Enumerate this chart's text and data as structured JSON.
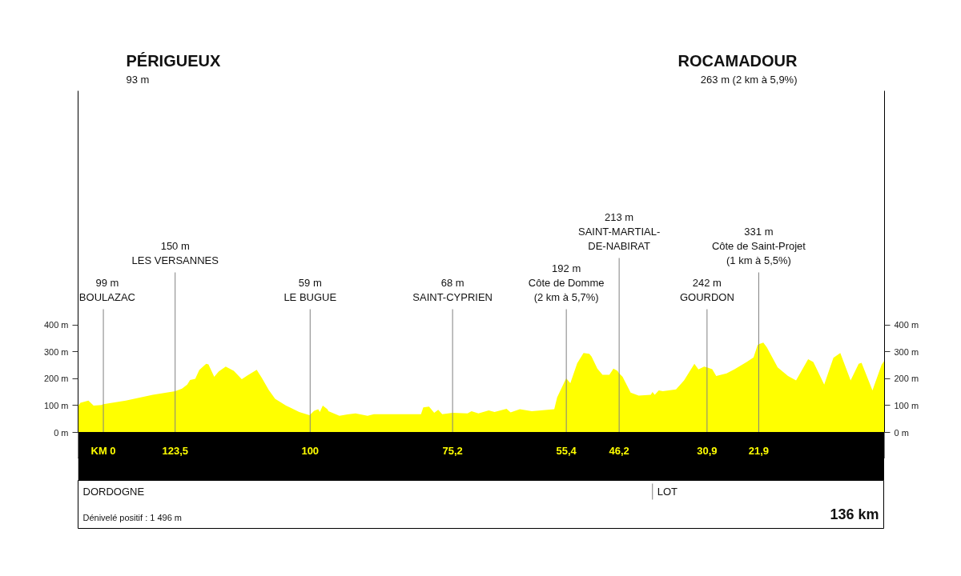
{
  "chart_data": {
    "type": "area",
    "color": "#ffff00",
    "grid": false,
    "annotations": [
      "PÉRIGUEUX\n93 m",
      "ROCAMADOUR\n263 m (2 km à 5,9%)",
      "DORDOGNE",
      "Dénivelé positif : 1 496 m",
      "136 km"
    ],
    "x": [
      140.4,
      140.0,
      138.6,
      138.2,
      137.7,
      136.3,
      136.0,
      132.1,
      127.4,
      123.5,
      122.3,
      121.4,
      120.9,
      120.0,
      119.3,
      118.1,
      117.7,
      116.7,
      115.9,
      114.7,
      113.3,
      111.9,
      110.9,
      109.3,
      108.4,
      107.2,
      106.1,
      104.2,
      101.9,
      100.1,
      99.3,
      98.6,
      98.3,
      97.8,
      97.0,
      96.8,
      94.9,
      93.5,
      92.1,
      90.0,
      88.9,
      84.2,
      80.7,
      80.3,
      79.3,
      78.4,
      77.7,
      77.0,
      75.2,
      72.6,
      71.9,
      70.7,
      68.9,
      67.9,
      65.8,
      65.1,
      63.5,
      61.4,
      57.5,
      57.0,
      55.6,
      55.4,
      54.7,
      53.5,
      52.4,
      51.4,
      51.0,
      50.0,
      49.1,
      47.9,
      47.2,
      46.5,
      46.2,
      45.6,
      44.2,
      42.8,
      40.7,
      40.4,
      40.0,
      39.3,
      38.6,
      36.3,
      34.9,
      33.1,
      32.4,
      31.4,
      30.9,
      30.0,
      29.3,
      27.5,
      26.1,
      24.0,
      22.8,
      22.1,
      21.9,
      21.1,
      20.5,
      18.6,
      16.8,
      15.4,
      13.3,
      12.4,
      10.5,
      8.9,
      7.7,
      5.9,
      4.5,
      4.0,
      2.1,
      0.5,
      0
    ],
    "values": [
      98,
      110,
      118,
      110,
      100,
      102,
      105,
      118,
      140,
      153,
      163,
      178,
      195,
      199,
      232,
      255,
      253,
      207,
      227,
      245,
      229,
      198,
      212,
      233,
      202,
      158,
      125,
      100,
      76,
      64,
      80,
      86,
      76,
      100,
      86,
      79,
      62,
      67,
      71,
      62,
      68,
      68,
      68,
      93,
      96,
      73,
      84,
      68,
      73,
      71,
      79,
      71,
      82,
      76,
      88,
      74,
      86,
      79,
      86,
      130,
      193,
      201,
      183,
      257,
      295,
      292,
      282,
      237,
      214,
      214,
      237,
      229,
      219,
      207,
      148,
      137,
      140,
      150,
      140,
      156,
      153,
      160,
      193,
      255,
      234,
      245,
      242,
      235,
      210,
      219,
      235,
      262,
      279,
      324,
      328,
      334,
      317,
      242,
      210,
      193,
      272,
      262,
      178,
      277,
      295,
      193,
      255,
      259,
      156,
      252,
      267
    ],
    "xlim": [
      140.4,
      0
    ],
    "xticks": [
      {
        "value": 136,
        "label": "KM 0"
      },
      {
        "value": 123.5,
        "label": "123,5"
      },
      100,
      {
        "value": 75.2,
        "label": "75,2"
      },
      {
        "value": 55.4,
        "label": "55,4"
      },
      {
        "value": 46.2,
        "label": "46,2"
      },
      {
        "value": 30.9,
        "label": "30,9"
      },
      {
        "value": 21.9,
        "label": "21,9"
      }
    ],
    "ylim": [
      0,
      1270
    ],
    "yticks": [
      {
        "value": 0,
        "label": "0 m"
      },
      {
        "value": 100,
        "label": "100 m"
      },
      {
        "value": 200,
        "label": "200 m"
      },
      {
        "value": 300,
        "label": "300 m"
      },
      {
        "value": 400,
        "label": "400 m"
      }
    ],
    "y2lim": [
      0,
      1270
    ],
    "y2ticks": [
      {
        "value": 0,
        "label": "0 m"
      },
      {
        "value": 100,
        "label": "100 m"
      },
      {
        "value": 200,
        "label": "200 m"
      },
      {
        "value": 300,
        "label": "300 m"
      },
      {
        "value": 400,
        "label": "400 m"
      }
    ],
    "ref_lines": [
      {
        "axis": "x",
        "value": 136,
        "label": "99 m\nBOULAZAC",
        "color": "#808080"
      },
      {
        "axis": "x",
        "value": 123.5,
        "label": "150 m\nLES VERSANNES",
        "color": "#808080"
      },
      {
        "axis": "x",
        "value": 100,
        "label": "59 m\nLE BUGUE",
        "color": "#808080"
      },
      {
        "axis": "x",
        "value": 75.2,
        "label": "68 m\nSAINT-CYPRIEN",
        "color": "#808080"
      },
      {
        "axis": "x",
        "value": 55.4,
        "label": "192 m\nCôte de Domme\n(2 km à 5,7%)",
        "color": "#808080"
      },
      {
        "axis": "x",
        "value": 46.2,
        "label": "213 m\nSAINT-MARTIAL-\nDE-NABIRAT",
        "color": "#808080"
      },
      {
        "axis": "x",
        "value": 30.9,
        "label": "242 m\nGOURDON",
        "color": "#808080"
      },
      {
        "axis": "x",
        "value": 21.9,
        "label": "331 m\nCôte de Saint-Projet\n(1 km à 5,5%)",
        "color": "#808080"
      },
      {
        "axis": "x",
        "value": 40.4,
        "label": "LOT",
        "color": "#808080"
      }
    ]
  }
}
